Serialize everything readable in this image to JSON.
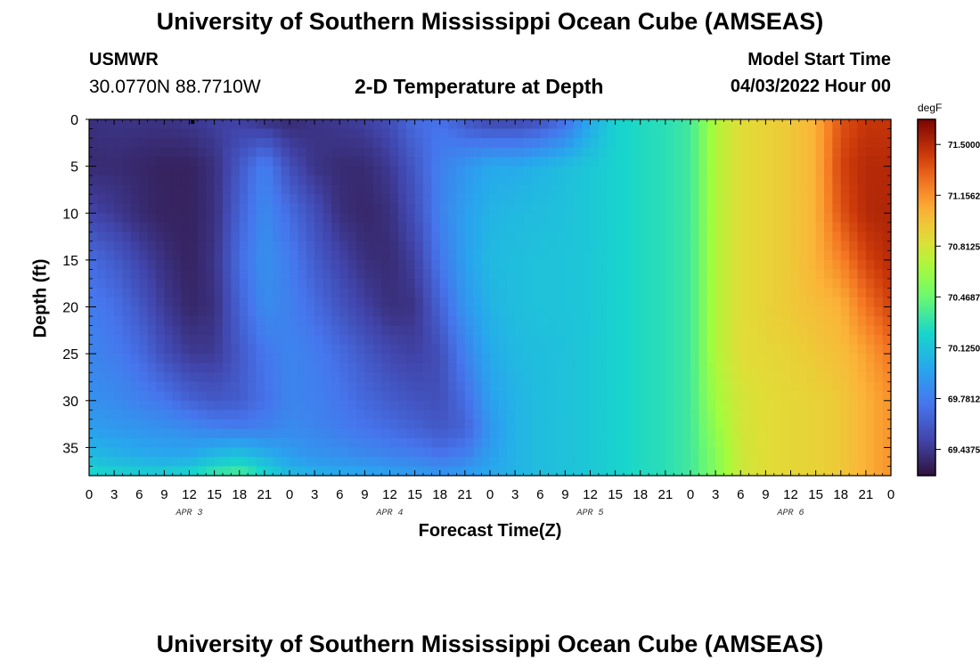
{
  "header": {
    "title_top": "University of Southern Mississippi Ocean Cube (AMSEAS)",
    "title_bottom": "University of Southern Mississippi Ocean Cube (AMSEAS)",
    "station_id": "USMWR",
    "station_coords": "30.0770N  88.7710W",
    "subtitle": "2-D Temperature at Depth",
    "model_start_label": "Model Start Time",
    "model_start_value": "04/03/2022 Hour 00"
  },
  "chart_data": {
    "type": "heatmap",
    "title": "2-D Temperature at Depth",
    "xlabel": "Forecast Time(Z)",
    "ylabel": "Depth (ft)",
    "colorbar_label": "degF",
    "x_range_hours": [
      0,
      96
    ],
    "y_range_ft": [
      0,
      38
    ],
    "y_reversed": true,
    "x_tick_labels": [
      "0",
      "3",
      "6",
      "9",
      "12",
      "15",
      "18",
      "21",
      "0",
      "3",
      "6",
      "9",
      "12",
      "15",
      "18",
      "21",
      "0",
      "3",
      "6",
      "9",
      "12",
      "15",
      "18",
      "21",
      "0",
      "3",
      "6",
      "9",
      "12",
      "15",
      "18",
      "21",
      "0"
    ],
    "day_labels": [
      {
        "label": "APR 3",
        "hour": 12
      },
      {
        "label": "APR 4",
        "hour": 36
      },
      {
        "label": "APR 5",
        "hour": 60
      },
      {
        "label": "APR 6",
        "hour": 84
      }
    ],
    "y_ticks": [
      0,
      5,
      10,
      15,
      20,
      25,
      30,
      35
    ],
    "colorbar": {
      "min": 69.26,
      "max": 71.67,
      "tick_labels": [
        "71.5000",
        "71.1562",
        "70.8125",
        "70.4687",
        "70.1250",
        "69.7812",
        "69.4375"
      ],
      "tick_values": [
        71.5,
        71.1562,
        70.8125,
        70.4687,
        70.125,
        69.7812,
        69.4375
      ]
    },
    "depths_ft": [
      0,
      5,
      10,
      15,
      20,
      25,
      30,
      33,
      36,
      38
    ],
    "hours": [
      0,
      3,
      6,
      9,
      12,
      15,
      18,
      21,
      24,
      27,
      30,
      33,
      36,
      39,
      42,
      45,
      48,
      51,
      54,
      57,
      60,
      63,
      66,
      69,
      72,
      75,
      78,
      81,
      84,
      87,
      90,
      93,
      96
    ],
    "temperature_degF": [
      [
        69.4,
        69.42,
        69.42,
        69.42,
        69.44,
        69.48,
        69.48,
        69.4,
        69.37,
        69.42,
        69.45,
        69.48,
        69.55,
        69.7,
        69.73,
        69.6,
        69.5,
        69.5,
        69.55,
        69.7,
        70.0,
        70.2,
        70.25,
        70.28,
        70.35,
        70.7,
        70.85,
        70.9,
        70.95,
        71.05,
        71.35,
        71.45,
        71.45
      ],
      [
        69.38,
        69.38,
        69.36,
        69.34,
        69.34,
        69.4,
        69.6,
        69.8,
        69.55,
        69.42,
        69.38,
        69.38,
        69.45,
        69.6,
        69.8,
        69.9,
        70.0,
        70.0,
        70.05,
        70.1,
        70.15,
        70.2,
        70.25,
        70.28,
        70.35,
        70.7,
        70.85,
        70.9,
        70.95,
        71.05,
        71.4,
        71.5,
        71.5
      ],
      [
        69.5,
        69.45,
        69.38,
        69.34,
        69.34,
        69.4,
        69.65,
        69.85,
        69.7,
        69.55,
        69.4,
        69.36,
        69.4,
        69.55,
        69.8,
        69.95,
        70.05,
        70.08,
        70.1,
        70.12,
        70.15,
        70.2,
        70.25,
        70.28,
        70.35,
        70.7,
        70.85,
        70.9,
        70.95,
        71.05,
        71.35,
        71.5,
        71.52
      ],
      [
        69.7,
        69.62,
        69.5,
        69.4,
        69.34,
        69.42,
        69.7,
        69.88,
        69.78,
        69.62,
        69.5,
        69.4,
        69.38,
        69.48,
        69.75,
        69.95,
        70.08,
        70.1,
        70.12,
        70.13,
        70.15,
        70.2,
        70.25,
        70.28,
        70.35,
        70.7,
        70.85,
        70.9,
        70.95,
        71.05,
        71.2,
        71.4,
        71.5
      ],
      [
        69.78,
        69.72,
        69.6,
        69.45,
        69.36,
        69.4,
        69.65,
        69.85,
        69.8,
        69.7,
        69.58,
        69.48,
        69.4,
        69.42,
        69.65,
        69.9,
        70.05,
        70.1,
        70.12,
        70.13,
        70.15,
        70.2,
        70.25,
        70.28,
        70.35,
        70.7,
        70.85,
        70.9,
        70.95,
        71.0,
        71.05,
        71.25,
        71.4
      ],
      [
        69.82,
        69.78,
        69.7,
        69.55,
        69.45,
        69.45,
        69.6,
        69.75,
        69.82,
        69.78,
        69.7,
        69.6,
        69.52,
        69.48,
        69.55,
        69.8,
        70.0,
        70.08,
        70.1,
        70.12,
        70.15,
        70.2,
        70.25,
        70.28,
        70.35,
        70.7,
        70.85,
        70.88,
        70.9,
        70.95,
        71.0,
        71.1,
        71.25
      ],
      [
        69.88,
        69.85,
        69.8,
        69.75,
        69.65,
        69.6,
        69.62,
        69.72,
        69.82,
        69.8,
        69.75,
        69.68,
        69.62,
        69.58,
        69.55,
        69.7,
        69.95,
        70.05,
        70.1,
        70.12,
        70.15,
        70.2,
        70.25,
        70.28,
        70.35,
        70.65,
        70.8,
        70.85,
        70.88,
        70.9,
        70.95,
        71.05,
        71.15
      ],
      [
        69.95,
        69.92,
        69.9,
        69.88,
        69.85,
        69.8,
        69.78,
        69.8,
        69.85,
        69.82,
        69.78,
        69.74,
        69.7,
        69.65,
        69.6,
        69.65,
        69.9,
        70.05,
        70.1,
        70.12,
        70.15,
        70.2,
        70.25,
        70.28,
        70.35,
        70.6,
        70.8,
        70.85,
        70.88,
        70.9,
        70.95,
        71.05,
        71.15
      ],
      [
        70.1,
        70.05,
        70.02,
        70.0,
        70.0,
        70.1,
        70.15,
        70.05,
        69.95,
        69.9,
        69.88,
        69.85,
        69.82,
        69.8,
        69.75,
        69.8,
        69.95,
        70.05,
        70.1,
        70.12,
        70.15,
        70.2,
        70.25,
        70.28,
        70.35,
        70.55,
        70.78,
        70.85,
        70.88,
        70.9,
        70.95,
        71.05,
        71.15
      ],
      [
        70.25,
        70.22,
        70.2,
        70.2,
        70.25,
        70.35,
        70.4,
        70.25,
        70.1,
        70.05,
        70.02,
        70.0,
        69.98,
        69.95,
        69.92,
        69.95,
        70.0,
        70.05,
        70.1,
        70.12,
        70.15,
        70.2,
        70.25,
        70.28,
        70.35,
        70.55,
        70.78,
        70.85,
        70.88,
        70.9,
        70.95,
        71.05,
        71.15
      ]
    ]
  }
}
